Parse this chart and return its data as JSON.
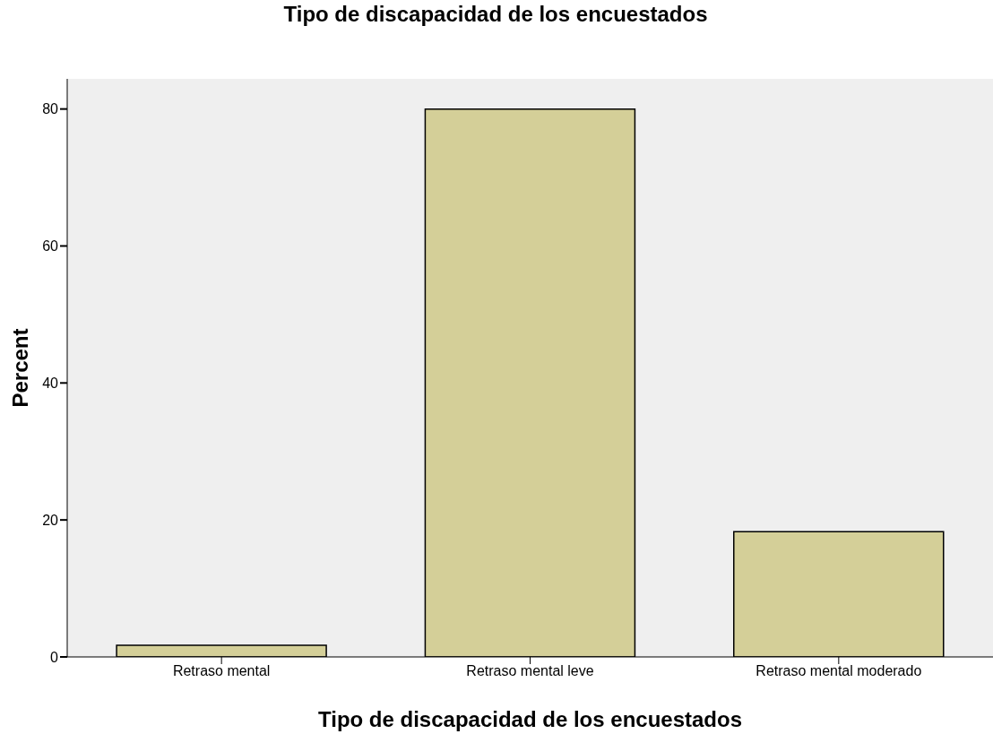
{
  "chart_data": {
    "type": "bar",
    "title": "Tipo de discapacidad de los encuestados",
    "xlabel": "Tipo de discapacidad de los encuestados",
    "ylabel": "Percent",
    "categories": [
      "Retraso mental",
      "Retraso mental leve",
      "Retraso mental moderado"
    ],
    "values": [
      1.7,
      80,
      18.3
    ],
    "color": "#d4cf98",
    "ylim": [
      0,
      84.4
    ],
    "yticks": [
      0,
      20,
      40,
      60,
      80
    ]
  }
}
